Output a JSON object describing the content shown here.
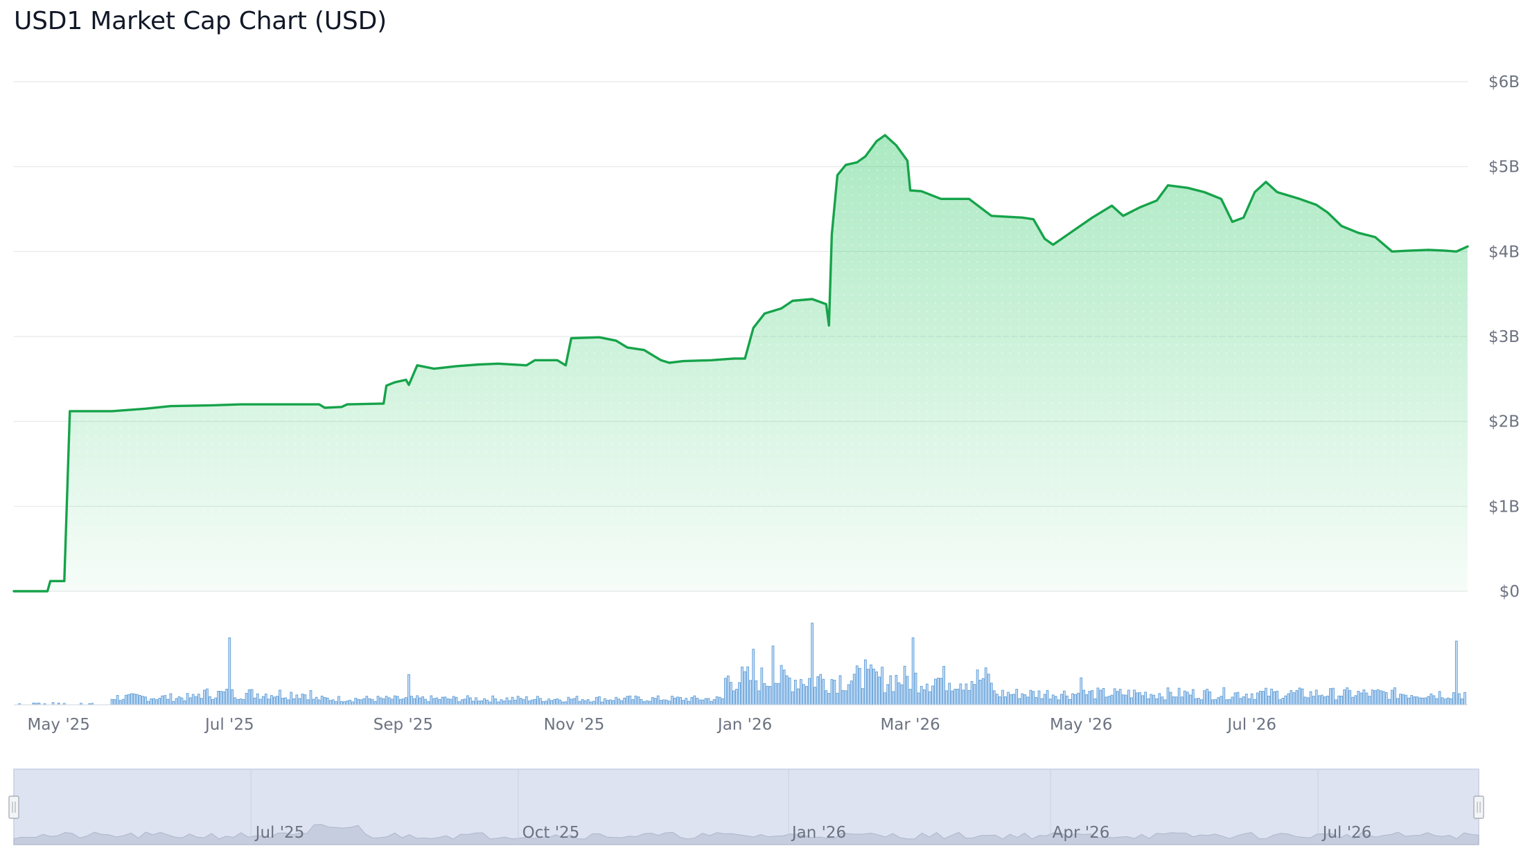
{
  "title": "USD1 Market Cap Chart (USD)",
  "colors": {
    "line": "#16a34a",
    "area": "#22c55e",
    "volume_fill": "#c7def7",
    "volume_stroke": "#5b9bd5",
    "grid": "#e5e7eb",
    "navigator_bg": "#dde3f0",
    "navigator_handle": "#f3f4f6"
  },
  "chart_data": {
    "type": "area",
    "title": "USD1 Market Cap Chart (USD)",
    "xlabel": "",
    "ylabel": "",
    "y_ticks": [
      "$0",
      "$1B",
      "$2B",
      "$3B",
      "$4B",
      "$5B",
      "$6B"
    ],
    "ylim": [
      0,
      6
    ],
    "y_unit": "billion USD",
    "x_ticks": [
      "May '25",
      "Jul '25",
      "Sep '25",
      "Nov '25",
      "Jan '26",
      "Mar '26",
      "May '26",
      "Jul '26"
    ],
    "grid": true,
    "legend": "none",
    "series": [
      {
        "values_description": "market cap in billions USD by date",
        "points": [
          [
            "2025-04-15",
            0.0
          ],
          [
            "2025-04-27",
            0.0
          ],
          [
            "2025-04-28",
            0.12
          ],
          [
            "2025-05-03",
            0.12
          ],
          [
            "2025-05-05",
            2.12
          ],
          [
            "2025-05-20",
            2.12
          ],
          [
            "2025-06-01",
            2.15
          ],
          [
            "2025-06-10",
            2.18
          ],
          [
            "2025-06-25",
            2.19
          ],
          [
            "2025-07-05",
            2.2
          ],
          [
            "2025-07-25",
            2.2
          ],
          [
            "2025-08-02",
            2.2
          ],
          [
            "2025-08-04",
            2.16
          ],
          [
            "2025-08-10",
            2.17
          ],
          [
            "2025-08-12",
            2.2
          ],
          [
            "2025-08-25",
            2.21
          ],
          [
            "2025-08-26",
            2.42
          ],
          [
            "2025-08-29",
            2.46
          ],
          [
            "2025-09-02",
            2.49
          ],
          [
            "2025-09-03",
            2.43
          ],
          [
            "2025-09-06",
            2.66
          ],
          [
            "2025-09-12",
            2.62
          ],
          [
            "2025-09-20",
            2.65
          ],
          [
            "2025-09-28",
            2.67
          ],
          [
            "2025-10-05",
            2.68
          ],
          [
            "2025-10-15",
            2.66
          ],
          [
            "2025-10-18",
            2.72
          ],
          [
            "2025-10-26",
            2.72
          ],
          [
            "2025-10-29",
            2.66
          ],
          [
            "2025-10-31",
            2.98
          ],
          [
            "2025-11-10",
            2.99
          ],
          [
            "2025-11-16",
            2.95
          ],
          [
            "2025-11-20",
            2.87
          ],
          [
            "2025-11-26",
            2.84
          ],
          [
            "2025-12-02",
            2.72
          ],
          [
            "2025-12-05",
            2.69
          ],
          [
            "2025-12-10",
            2.71
          ],
          [
            "2025-12-20",
            2.72
          ],
          [
            "2025-12-28",
            2.74
          ],
          [
            "2026-01-01",
            2.74
          ],
          [
            "2026-01-04",
            3.1
          ],
          [
            "2026-01-08",
            3.27
          ],
          [
            "2026-01-14",
            3.33
          ],
          [
            "2026-01-18",
            3.42
          ],
          [
            "2026-01-25",
            3.44
          ],
          [
            "2026-01-30",
            3.38
          ],
          [
            "2026-01-31",
            3.13
          ],
          [
            "2026-02-01",
            4.2
          ],
          [
            "2026-02-03",
            4.9
          ],
          [
            "2026-02-06",
            5.02
          ],
          [
            "2026-02-10",
            5.05
          ],
          [
            "2026-02-13",
            5.12
          ],
          [
            "2026-02-17",
            5.3
          ],
          [
            "2026-02-20",
            5.37
          ],
          [
            "2026-02-24",
            5.25
          ],
          [
            "2026-02-28",
            5.07
          ],
          [
            "2026-03-01",
            4.72
          ],
          [
            "2026-03-05",
            4.71
          ],
          [
            "2026-03-12",
            4.62
          ],
          [
            "2026-03-22",
            4.62
          ],
          [
            "2026-03-30",
            4.42
          ],
          [
            "2026-04-10",
            4.4
          ],
          [
            "2026-04-14",
            4.38
          ],
          [
            "2026-04-18",
            4.15
          ],
          [
            "2026-04-21",
            4.08
          ],
          [
            "2026-04-28",
            4.24
          ],
          [
            "2026-05-05",
            4.4
          ],
          [
            "2026-05-12",
            4.54
          ],
          [
            "2026-05-16",
            4.42
          ],
          [
            "2026-05-22",
            4.52
          ],
          [
            "2026-05-28",
            4.6
          ],
          [
            "2026-06-01",
            4.78
          ],
          [
            "2026-06-08",
            4.75
          ],
          [
            "2026-06-14",
            4.7
          ],
          [
            "2026-06-20",
            4.62
          ],
          [
            "2026-06-24",
            4.35
          ],
          [
            "2026-06-28",
            4.4
          ],
          [
            "2026-07-02",
            4.7
          ],
          [
            "2026-07-06",
            4.82
          ],
          [
            "2026-07-10",
            4.7
          ],
          [
            "2026-07-18",
            4.62
          ],
          [
            "2026-07-24",
            4.55
          ],
          [
            "2026-07-28",
            4.46
          ],
          [
            "2026-08-02",
            4.3
          ],
          [
            "2026-08-08",
            4.22
          ],
          [
            "2026-08-14",
            4.17
          ],
          [
            "2026-08-20",
            4.0
          ],
          [
            "2026-08-26",
            4.01
          ],
          [
            "2026-09-02",
            4.02
          ],
          [
            "2026-09-08",
            4.01
          ],
          [
            "2026-09-12",
            4.0
          ],
          [
            "2026-09-16",
            4.06
          ]
        ]
      }
    ],
    "volume_series": {
      "description": "daily volume bars (relative heights, 0-1), shown below the main chart with no axis labels",
      "values_by_period": [
        {
          "start": "2025-04-15",
          "end": "2025-05-20",
          "level": 0.02
        },
        {
          "start": "2025-05-20",
          "end": "2025-06-20",
          "level": 0.1
        },
        {
          "start": "2025-06-20",
          "end": "2025-07-31",
          "level": 0.15
        },
        {
          "start": "2025-07-31",
          "end": "2025-12-25",
          "level": 0.08
        },
        {
          "start": "2025-12-25",
          "end": "2026-03-31",
          "level": 0.35
        },
        {
          "start": "2026-03-31",
          "end": "2026-09-16",
          "level": 0.15
        }
      ],
      "spikes": [
        [
          "2025-07-01",
          0.82
        ],
        [
          "2025-09-03",
          0.37
        ],
        [
          "2026-01-04",
          0.68
        ],
        [
          "2026-01-11",
          0.72
        ],
        [
          "2026-01-25",
          1.0
        ],
        [
          "2026-02-13",
          0.55
        ],
        [
          "2026-03-02",
          0.82
        ],
        [
          "2026-05-01",
          0.33
        ],
        [
          "2026-09-12",
          0.78
        ]
      ]
    }
  },
  "navigator": {
    "labels": [
      "Jul '25",
      "Oct '25",
      "Jan '26",
      "Apr '26",
      "Jul '26"
    ]
  }
}
